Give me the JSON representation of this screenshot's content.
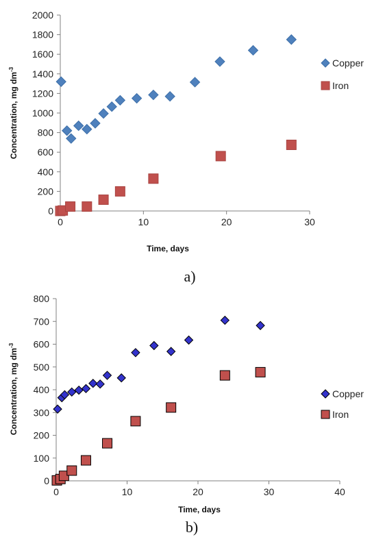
{
  "colors": {
    "a_copper": "#4f81bd",
    "a_iron": "#c0504d",
    "b_copper": "#3333cc",
    "b_iron": "#c0504d",
    "axis": "#808080"
  },
  "chart_data": [
    {
      "type": "scatter",
      "panel_label": "a)",
      "xlabel": "Time, days",
      "ylabel": "Concentration, mg dm",
      "ylabel_sup": "-3",
      "xlim": [
        0,
        30
      ],
      "ylim": [
        0,
        2000
      ],
      "xticks": [
        0,
        10,
        20,
        30
      ],
      "yticks": [
        0,
        200,
        400,
        600,
        800,
        1000,
        1200,
        1400,
        1600,
        1800,
        2000
      ],
      "grid": false,
      "legend_position": "right",
      "series": [
        {
          "name": "Copper",
          "marker": "diamond",
          "points": [
            [
              0.1,
              1320
            ],
            [
              0.8,
              820
            ],
            [
              1.3,
              740
            ],
            [
              2.2,
              870
            ],
            [
              3.2,
              835
            ],
            [
              4.2,
              895
            ],
            [
              5.2,
              995
            ],
            [
              6.2,
              1065
            ],
            [
              7.2,
              1130
            ],
            [
              9.2,
              1150
            ],
            [
              11.2,
              1185
            ],
            [
              13.2,
              1170
            ],
            [
              16.2,
              1315
            ],
            [
              19.2,
              1525
            ],
            [
              23.2,
              1640
            ],
            [
              27.8,
              1750
            ]
          ]
        },
        {
          "name": "Iron",
          "marker": "square",
          "points": [
            [
              0.0,
              0
            ],
            [
              0.3,
              5
            ],
            [
              1.2,
              45
            ],
            [
              3.2,
              45
            ],
            [
              5.2,
              115
            ],
            [
              7.2,
              200
            ],
            [
              11.2,
              330
            ],
            [
              19.3,
              560
            ],
            [
              27.8,
              675
            ]
          ]
        }
      ]
    },
    {
      "type": "scatter",
      "panel_label": "b)",
      "xlabel": "Time, days",
      "ylabel": "Concentration, mg dm",
      "ylabel_sup": "-3",
      "xlim": [
        0,
        40
      ],
      "ylim": [
        0,
        800
      ],
      "xticks": [
        0,
        10,
        20,
        30,
        40
      ],
      "yticks": [
        0,
        100,
        200,
        300,
        400,
        500,
        600,
        700,
        800
      ],
      "grid": false,
      "legend_position": "right",
      "series": [
        {
          "name": "Copper",
          "marker": "diamond",
          "points": [
            [
              0.2,
              315
            ],
            [
              0.8,
              365
            ],
            [
              1.2,
              378
            ],
            [
              2.2,
              390
            ],
            [
              3.2,
              398
            ],
            [
              4.2,
              405
            ],
            [
              5.2,
              428
            ],
            [
              6.2,
              425
            ],
            [
              7.2,
              463
            ],
            [
              9.2,
              452
            ],
            [
              11.2,
              563
            ],
            [
              13.8,
              594
            ],
            [
              16.2,
              568
            ],
            [
              18.7,
              618
            ],
            [
              23.8,
              705
            ],
            [
              28.8,
              682
            ]
          ]
        },
        {
          "name": "Iron",
          "marker": "square",
          "points": [
            [
              0.1,
              2
            ],
            [
              0.6,
              8
            ],
            [
              1.1,
              22
            ],
            [
              2.2,
              45
            ],
            [
              4.2,
              90
            ],
            [
              7.2,
              165
            ],
            [
              11.2,
              262
            ],
            [
              16.2,
              322
            ],
            [
              23.8,
              463
            ],
            [
              28.8,
              477
            ]
          ]
        }
      ]
    }
  ]
}
